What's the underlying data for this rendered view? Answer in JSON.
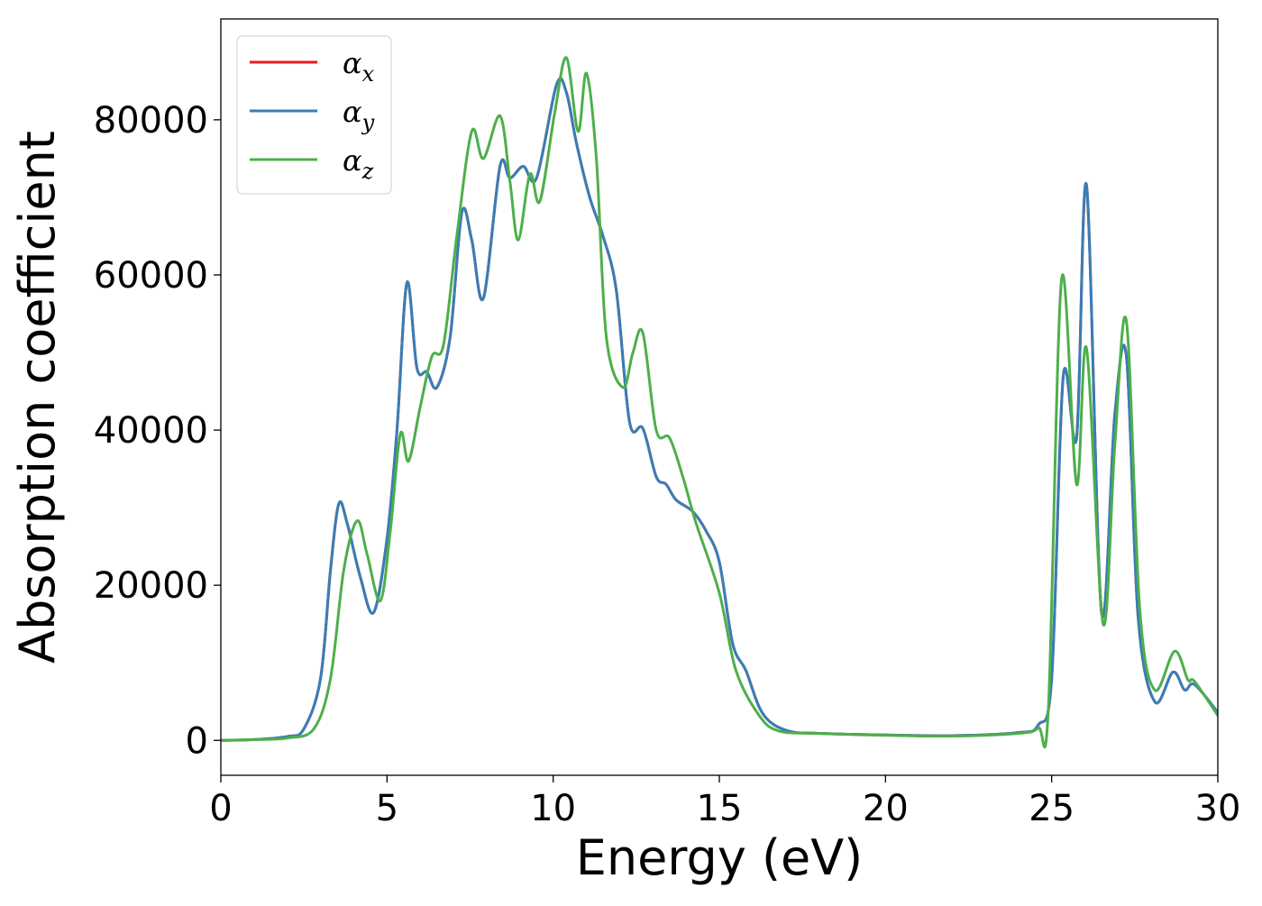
{
  "chart_data": {
    "type": "line",
    "xlabel": "Energy (eV)",
    "ylabel": "Absorption coefficient",
    "xlim": [
      0,
      30
    ],
    "ylim": [
      -4500,
      93000
    ],
    "x_ticks": [
      "0",
      "5",
      "10",
      "15",
      "20",
      "25",
      "30"
    ],
    "y_ticks": [
      "0",
      "20000",
      "40000",
      "60000",
      "80000"
    ],
    "x_tick_values": [
      0,
      5,
      10,
      15,
      20,
      25,
      30
    ],
    "y_tick_values": [
      0,
      20000,
      40000,
      60000,
      80000
    ],
    "grid": false,
    "legend_position": "top-left",
    "series": [
      {
        "name": "αx",
        "label_base": "α",
        "label_sub": "x",
        "color": "#e41a1c",
        "points": [
          [
            0,
            0
          ],
          [
            1,
            100
          ],
          [
            2,
            500
          ],
          [
            2.5,
            1500
          ],
          [
            3,
            8000
          ],
          [
            3.3,
            22000
          ],
          [
            3.55,
            30500
          ],
          [
            3.8,
            28000
          ],
          [
            4.2,
            21000
          ],
          [
            4.6,
            16500
          ],
          [
            5,
            26000
          ],
          [
            5.3,
            40000
          ],
          [
            5.6,
            59000
          ],
          [
            5.9,
            48000
          ],
          [
            6.2,
            47500
          ],
          [
            6.5,
            45500
          ],
          [
            6.9,
            52000
          ],
          [
            7.25,
            68000
          ],
          [
            7.55,
            64500
          ],
          [
            7.9,
            57000
          ],
          [
            8.4,
            74000
          ],
          [
            8.7,
            72500
          ],
          [
            9.1,
            74000
          ],
          [
            9.5,
            72500
          ],
          [
            10.1,
            84500
          ],
          [
            10.4,
            83500
          ],
          [
            10.7,
            77000
          ],
          [
            11.1,
            70000
          ],
          [
            11.5,
            65000
          ],
          [
            11.9,
            58000
          ],
          [
            12.3,
            41000
          ],
          [
            12.7,
            40200
          ],
          [
            13.1,
            34000
          ],
          [
            13.4,
            33000
          ],
          [
            13.7,
            31000
          ],
          [
            14.2,
            29500
          ],
          [
            14.6,
            27000
          ],
          [
            15,
            23000
          ],
          [
            15.4,
            12500
          ],
          [
            15.8,
            9000
          ],
          [
            16.3,
            3500
          ],
          [
            17,
            1300
          ],
          [
            18,
            900
          ],
          [
            20,
            700
          ],
          [
            22,
            600
          ],
          [
            24,
            1000
          ],
          [
            24.6,
            2000
          ],
          [
            25,
            8000
          ],
          [
            25.35,
            47000
          ],
          [
            25.75,
            39000
          ],
          [
            26.05,
            71500
          ],
          [
            26.5,
            16500
          ],
          [
            26.9,
            42000
          ],
          [
            27.25,
            49500
          ],
          [
            27.6,
            16000
          ],
          [
            28.1,
            5000
          ],
          [
            28.65,
            8800
          ],
          [
            29,
            6500
          ],
          [
            29.3,
            7200
          ],
          [
            30,
            3600
          ]
        ]
      },
      {
        "name": "αy",
        "label_base": "α",
        "label_sub": "y",
        "color": "#377eb8",
        "points": [
          [
            0,
            0
          ],
          [
            1,
            100
          ],
          [
            2,
            500
          ],
          [
            2.5,
            1500
          ],
          [
            3,
            8000
          ],
          [
            3.3,
            22000
          ],
          [
            3.55,
            30500
          ],
          [
            3.8,
            28000
          ],
          [
            4.2,
            21000
          ],
          [
            4.6,
            16500
          ],
          [
            5,
            26000
          ],
          [
            5.3,
            40000
          ],
          [
            5.6,
            59000
          ],
          [
            5.9,
            48000
          ],
          [
            6.2,
            47500
          ],
          [
            6.5,
            45500
          ],
          [
            6.9,
            52000
          ],
          [
            7.25,
            68000
          ],
          [
            7.55,
            64500
          ],
          [
            7.9,
            57000
          ],
          [
            8.4,
            74000
          ],
          [
            8.7,
            72500
          ],
          [
            9.1,
            74000
          ],
          [
            9.5,
            72500
          ],
          [
            10.1,
            84500
          ],
          [
            10.4,
            83500
          ],
          [
            10.7,
            77000
          ],
          [
            11.1,
            70000
          ],
          [
            11.5,
            65000
          ],
          [
            11.9,
            58000
          ],
          [
            12.3,
            41000
          ],
          [
            12.7,
            40200
          ],
          [
            13.1,
            34000
          ],
          [
            13.4,
            33000
          ],
          [
            13.7,
            31000
          ],
          [
            14.2,
            29500
          ],
          [
            14.6,
            27000
          ],
          [
            15,
            23000
          ],
          [
            15.4,
            12500
          ],
          [
            15.8,
            9000
          ],
          [
            16.3,
            3500
          ],
          [
            17,
            1300
          ],
          [
            18,
            900
          ],
          [
            20,
            700
          ],
          [
            22,
            600
          ],
          [
            24,
            1000
          ],
          [
            24.6,
            2000
          ],
          [
            25,
            8000
          ],
          [
            25.35,
            47000
          ],
          [
            25.75,
            39000
          ],
          [
            26.05,
            71500
          ],
          [
            26.5,
            16500
          ],
          [
            26.9,
            42000
          ],
          [
            27.25,
            49500
          ],
          [
            27.6,
            16000
          ],
          [
            28.1,
            5000
          ],
          [
            28.65,
            8800
          ],
          [
            29,
            6500
          ],
          [
            29.3,
            7200
          ],
          [
            30,
            3600
          ]
        ]
      },
      {
        "name": "αz",
        "label_base": "α",
        "label_sub": "z",
        "color": "#4daf4a",
        "points": [
          [
            0,
            0
          ],
          [
            1,
            100
          ],
          [
            2,
            300
          ],
          [
            2.8,
            1500
          ],
          [
            3.3,
            8000
          ],
          [
            3.7,
            22000
          ],
          [
            4.1,
            28300
          ],
          [
            4.4,
            24000
          ],
          [
            4.8,
            18000
          ],
          [
            5.1,
            27000
          ],
          [
            5.4,
            39500
          ],
          [
            5.65,
            36000
          ],
          [
            6,
            43000
          ],
          [
            6.35,
            49500
          ],
          [
            6.7,
            51000
          ],
          [
            7.1,
            65000
          ],
          [
            7.55,
            78500
          ],
          [
            7.9,
            75000
          ],
          [
            8.4,
            80500
          ],
          [
            8.7,
            72000
          ],
          [
            8.95,
            64500
          ],
          [
            9.3,
            73000
          ],
          [
            9.6,
            69500
          ],
          [
            10.05,
            81000
          ],
          [
            10.4,
            88000
          ],
          [
            10.75,
            78500
          ],
          [
            11,
            86000
          ],
          [
            11.3,
            75000
          ],
          [
            11.6,
            52000
          ],
          [
            12.1,
            45500
          ],
          [
            12.4,
            50000
          ],
          [
            12.7,
            52500
          ],
          [
            13.1,
            40000
          ],
          [
            13.5,
            39000
          ],
          [
            13.9,
            34000
          ],
          [
            14.3,
            28000
          ],
          [
            15,
            19000
          ],
          [
            15.5,
            9000
          ],
          [
            16.2,
            3200
          ],
          [
            16.8,
            1200
          ],
          [
            18,
            900
          ],
          [
            20,
            650
          ],
          [
            22,
            550
          ],
          [
            24,
            900
          ],
          [
            24.6,
            1600
          ],
          [
            24.9,
            4000
          ],
          [
            25.3,
            59500
          ],
          [
            25.75,
            33000
          ],
          [
            26.05,
            50500
          ],
          [
            26.55,
            15000
          ],
          [
            26.9,
            38000
          ],
          [
            27.25,
            54000
          ],
          [
            27.65,
            17000
          ],
          [
            28.1,
            6500
          ],
          [
            28.7,
            11500
          ],
          [
            29.1,
            7800
          ],
          [
            29.3,
            7600
          ],
          [
            30,
            3200
          ]
        ]
      }
    ]
  }
}
